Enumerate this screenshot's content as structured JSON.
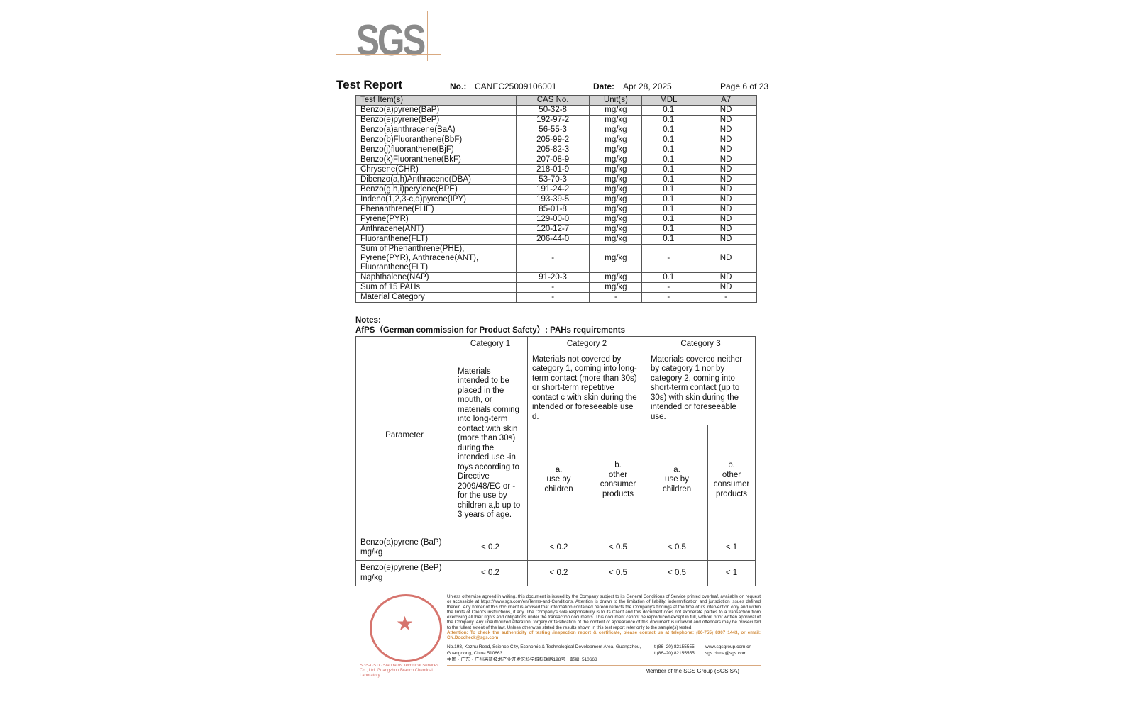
{
  "logo": "SGS",
  "header": {
    "title": "Test Report",
    "no_label": "No.:",
    "no": "CANEC25009106001",
    "date_label": "Date:",
    "date": "Apr 28, 2025",
    "page": "Page 6 of 23"
  },
  "table": {
    "columns": [
      "Test Item(s)",
      "CAS No.",
      "Unit(s)",
      "MDL",
      "A7"
    ],
    "rows": [
      [
        "Benzo(a)pyrene(BaP)",
        "50-32-8",
        "mg/kg",
        "0.1",
        "ND"
      ],
      [
        "Benzo(e)pyrene(BeP)",
        "192-97-2",
        "mg/kg",
        "0.1",
        "ND"
      ],
      [
        "Benzo(a)anthracene(BaA)",
        "56-55-3",
        "mg/kg",
        "0.1",
        "ND"
      ],
      [
        "Benzo(b)Fluoranthene(BbF)",
        "205-99-2",
        "mg/kg",
        "0.1",
        "ND"
      ],
      [
        "Benzo(j)fluoranthene(BjF)",
        "205-82-3",
        "mg/kg",
        "0.1",
        "ND"
      ],
      [
        "Benzo(k)Fluoranthene(BkF)",
        "207-08-9",
        "mg/kg",
        "0.1",
        "ND"
      ],
      [
        "Chrysene(CHR)",
        "218-01-9",
        "mg/kg",
        "0.1",
        "ND"
      ],
      [
        "Dibenzo(a,h)Anthracene(DBA)",
        "53-70-3",
        "mg/kg",
        "0.1",
        "ND"
      ],
      [
        "Benzo(g,h,i)perylene(BPE)",
        "191-24-2",
        "mg/kg",
        "0.1",
        "ND"
      ],
      [
        "Indeno(1,2,3-c,d)pyrene(IPY)",
        "193-39-5",
        "mg/kg",
        "0.1",
        "ND"
      ],
      [
        "Phenanthrene(PHE)",
        "85-01-8",
        "mg/kg",
        "0.1",
        "ND"
      ],
      [
        "Pyrene(PYR)",
        "129-00-0",
        "mg/kg",
        "0.1",
        "ND"
      ],
      [
        "Anthracene(ANT)",
        "120-12-7",
        "mg/kg",
        "0.1",
        "ND"
      ],
      [
        "Fluoranthene(FLT)",
        "206-44-0",
        "mg/kg",
        "0.1",
        "ND"
      ],
      [
        "Sum of Phenanthrene(PHE), Pyrene(PYR), Anthracene(ANT), Fluoranthene(FLT)",
        "-",
        "mg/kg",
        "-",
        "ND"
      ],
      [
        "Naphthalene(NAP)",
        "91-20-3",
        "mg/kg",
        "0.1",
        "ND"
      ],
      [
        "Sum of 15 PAHs",
        "-",
        "mg/kg",
        "-",
        "ND"
      ],
      [
        "Material Category",
        "-",
        "-",
        "-",
        "-"
      ]
    ]
  },
  "notes": {
    "label": "Notes:",
    "afps_title": "AfPS（German commission for Product Safety）: PAHs requirements"
  },
  "afps": {
    "parameter": "Parameter",
    "categories": [
      "Category 1",
      "Category 2",
      "Category 3"
    ],
    "cat1_desc": "Materials intended to be placed in the mouth, or materials coming into long-term contact with skin (more than 30s) during the intended use -in toys according to Directive 2009/48/EC or -for the use by children a,b up to 3 years of age.",
    "cat2_desc": "Materials not covered by category 1, coming into long-term contact (more than 30s) or short-term repetitive contact c with skin during the intended or foreseeable use d.",
    "cat3_desc": "Materials covered neither by category 1 nor by category 2, coming into short-term contact (up to 30s) with skin during the intended or foreseeable use.",
    "sub": [
      "a.\nuse by children",
      "b.\nother consumer products",
      "a.\nuse by children",
      "b.\nother consumer products"
    ],
    "rows": [
      {
        "param": "Benzo(a)pyrene (BaP) mg/kg",
        "values": [
          "< 0.2",
          "< 0.2",
          "< 0.5",
          "< 0.5",
          "< 1"
        ]
      },
      {
        "param": "Benzo(e)pyrene (BeP) mg/kg",
        "values": [
          "< 0.2",
          "< 0.2",
          "< 0.5",
          "< 0.5",
          "< 1"
        ]
      }
    ]
  },
  "footer": {
    "disclaimer": "Unless otherwise agreed in writing, this document is issued by the Company subject to its General Conditions of Service printed overleaf, available on request or accessible at https://www.sgs.com/en/Terms-and-Conditions. Attention is drawn to the limitation of liability, indemnification and jurisdiction issues defined therein. Any holder of this document is advised that information contained hereon reflects the Company's findings at the time of its intervention only and within the limits of Client's instructions, if any. The Company's sole responsibility is to its Client and this document does not exonerate parties to a transaction from exercising all their rights and obligations under the transaction documents. This document cannot be reproduced except in full, without prior written approval of the Company. Any unauthorized alteration, forgery or falsification of the content or appearance of this document is unlawful and offenders may be prosecuted to the fullest extent of the law. Unless otherwise stated the results shown in this test report refer only to the sample(s) tested.",
    "attention": "Attention: To check the authenticity of testing /inspection report & certificate, please contact us at telephone: (86-755) 8307 1443, or email: CN.Doccheck@sgs.com",
    "address_en": "No.198, Kezhu Road, Science City, Economic & Technological Development Area, Guangzhou, Guangdong, China 510663",
    "address_cn": "中国・广东・广州高新技术产业开发区科学城科珠路198号　邮编: 510663",
    "tel1": "t (86–20) 82155555",
    "tel2": "t (86–20) 82155555",
    "web": "www.sgsgroup.com.cn",
    "email": "sgs.china@sgs.com",
    "member": "Member of the SGS Group (SGS SA)",
    "seal_text": "SGS-CSTC Standards Technical Services Co., Ltd. Guangzhou Branch Chemical Laboratory"
  }
}
